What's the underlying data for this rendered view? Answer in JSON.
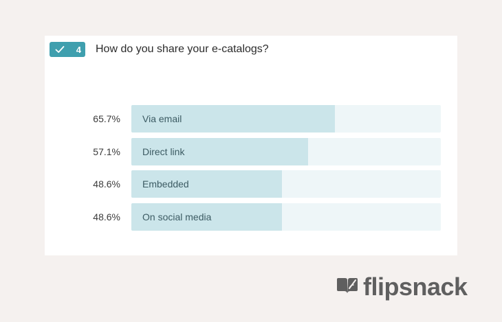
{
  "question": {
    "number": "4",
    "title": "How do you share your e-catalogs?",
    "badge_color": "#3f9fae",
    "badge_icon": "check-icon"
  },
  "options": [
    {
      "label": "Via email",
      "percent_label": "65.7%",
      "percent": 65.7
    },
    {
      "label": "Direct link",
      "percent_label": "57.1%",
      "percent": 57.1
    },
    {
      "label": "Embedded",
      "percent_label": "48.6%",
      "percent": 48.6
    },
    {
      "label": "On social media",
      "percent_label": "48.6%",
      "percent": 48.6
    }
  ],
  "colors": {
    "bar_fill": "#cbe5ea",
    "bar_track": "#eef6f8",
    "background": "#f5f1ef"
  },
  "brand": {
    "name": "flipsnack",
    "icon": "flipsnack-logo-icon"
  }
}
